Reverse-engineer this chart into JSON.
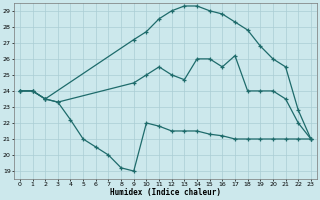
{
  "xlabel": "Humidex (Indice chaleur)",
  "background_color": "#cce8ec",
  "grid_color": "#aacdd4",
  "line_color": "#1e6b6b",
  "xlim": [
    -0.5,
    23.5
  ],
  "ylim": [
    18.5,
    29.5
  ],
  "xticks": [
    0,
    1,
    2,
    3,
    4,
    5,
    6,
    7,
    8,
    9,
    10,
    11,
    12,
    13,
    14,
    15,
    16,
    17,
    18,
    19,
    20,
    21,
    22,
    23
  ],
  "yticks": [
    19,
    20,
    21,
    22,
    23,
    24,
    25,
    26,
    27,
    28,
    29
  ],
  "line_top": {
    "x": [
      0,
      1,
      2,
      9,
      10,
      11,
      12,
      13,
      14,
      15,
      16,
      17,
      18,
      19,
      20,
      21,
      22,
      23
    ],
    "y": [
      24.0,
      24.0,
      23.5,
      27.2,
      27.7,
      28.5,
      29.0,
      29.3,
      29.3,
      29.0,
      28.8,
      28.3,
      27.8,
      26.8,
      26.0,
      25.5,
      22.8,
      21.0
    ]
  },
  "line_mid": {
    "x": [
      0,
      1,
      2,
      3,
      9,
      10,
      11,
      12,
      13,
      14,
      15,
      16,
      17,
      18,
      19,
      20,
      21,
      22,
      23
    ],
    "y": [
      24.0,
      24.0,
      23.5,
      23.3,
      24.5,
      25.0,
      25.5,
      25.0,
      24.7,
      26.0,
      26.0,
      25.5,
      26.2,
      24.0,
      24.0,
      24.0,
      23.5,
      22.0,
      21.0
    ]
  },
  "line_bot": {
    "x": [
      0,
      1,
      2,
      3,
      4,
      5,
      6,
      7,
      8,
      9,
      10,
      11,
      12,
      13,
      14,
      15,
      16,
      17,
      18,
      19,
      20,
      21,
      22,
      23
    ],
    "y": [
      24.0,
      24.0,
      23.5,
      23.3,
      22.2,
      21.0,
      20.5,
      20.0,
      19.2,
      19.0,
      22.0,
      21.8,
      21.5,
      21.5,
      21.5,
      21.3,
      21.2,
      21.0,
      21.0,
      21.0,
      21.0,
      21.0,
      21.0,
      21.0
    ]
  }
}
